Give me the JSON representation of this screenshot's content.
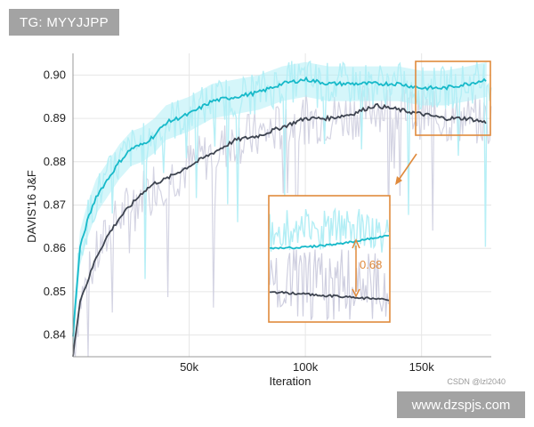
{
  "watermark_top": "TG: MYYJJPP",
  "watermark_bottom": "www.dzspjs.com",
  "credit": "CSDN @lzl2040",
  "colors": {
    "cyan": "#17b9c9",
    "cyan_band": "#b3eef5",
    "dark": "#3e4450",
    "gray_band": "#cfcfe0",
    "orange": "#e08a3c",
    "grid": "#e6e6e6"
  },
  "chart_data": {
    "type": "line",
    "xlabel": "Iteration",
    "ylabel": "DAVIS'16 J&F",
    "xlim": [
      0,
      180000
    ],
    "ylim": [
      0.835,
      0.905
    ],
    "x_ticks": [
      50000,
      100000,
      150000
    ],
    "x_tick_labels": [
      "50k",
      "100k",
      "150k"
    ],
    "y_ticks": [
      0.84,
      0.85,
      0.86,
      0.87,
      0.88,
      0.89,
      0.9
    ],
    "y_tick_labels": [
      "0.84",
      "0.85",
      "0.86",
      "0.87",
      "0.88",
      "0.89",
      "0.90"
    ],
    "grid": true,
    "series": [
      {
        "color": "#17b9c9",
        "x": [
          0,
          3000,
          6000,
          10000,
          15000,
          20000,
          25000,
          30000,
          35000,
          40000,
          50000,
          60000,
          70000,
          80000,
          90000,
          100000,
          110000,
          120000,
          130000,
          140000,
          150000,
          160000,
          170000,
          178000
        ],
        "values": [
          0.84,
          0.86,
          0.866,
          0.872,
          0.876,
          0.88,
          0.883,
          0.884,
          0.886,
          0.889,
          0.891,
          0.894,
          0.895,
          0.896,
          0.898,
          0.899,
          0.898,
          0.898,
          0.898,
          0.898,
          0.897,
          0.897,
          0.898,
          0.899
        ]
      },
      {
        "color": "#3e4450",
        "x": [
          0,
          3000,
          6000,
          10000,
          15000,
          20000,
          25000,
          30000,
          35000,
          40000,
          50000,
          60000,
          70000,
          80000,
          90000,
          100000,
          110000,
          120000,
          130000,
          140000,
          150000,
          160000,
          170000,
          178000
        ],
        "values": [
          0.835,
          0.848,
          0.852,
          0.858,
          0.863,
          0.867,
          0.87,
          0.873,
          0.875,
          0.876,
          0.879,
          0.882,
          0.885,
          0.886,
          0.888,
          0.89,
          0.89,
          0.891,
          0.893,
          0.892,
          0.891,
          0.89,
          0.89,
          0.889
        ]
      }
    ],
    "annotations": [
      {
        "type": "difference",
        "label": "0.68"
      }
    ]
  }
}
